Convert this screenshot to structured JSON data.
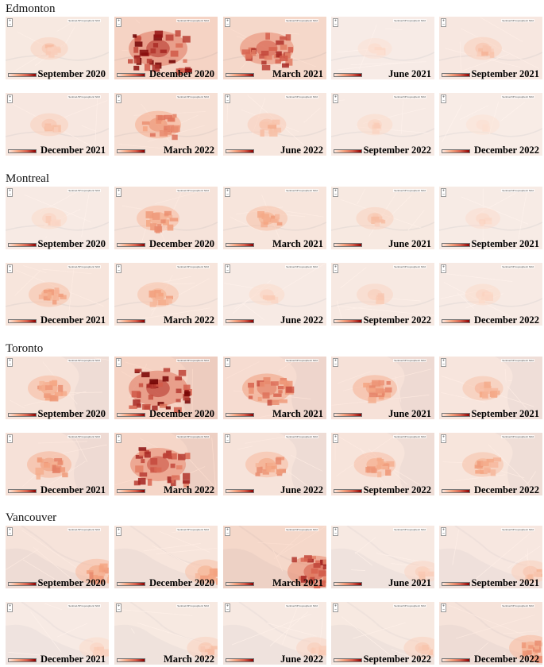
{
  "cities": [
    {
      "name": "Edmonton",
      "theme": "land",
      "caption": "Sentinel-5P tropospheric NO2",
      "intensity": [
        0.18,
        0.85,
        0.7,
        0.08,
        0.2,
        0.2,
        0.45,
        0.22,
        0.12,
        0.06
      ],
      "labels": [
        "September 2020",
        "December 2020",
        "March 2021",
        "June 2021",
        "September 2021",
        "December 2021",
        "March 2022",
        "June 2022",
        "September 2022",
        "December 2022"
      ]
    },
    {
      "name": "Montreal",
      "theme": "land",
      "caption": "Sentinel-5P tropospheric NO2",
      "intensity": [
        0.12,
        0.35,
        0.3,
        0.18,
        0.1,
        0.3,
        0.3,
        0.12,
        0.15,
        0.12
      ],
      "labels": [
        "September 2020",
        "December 2020",
        "March 2021",
        "June 2021",
        "September 2021",
        "December 2021",
        "March 2022",
        "June 2022",
        "September 2022",
        "December 2022"
      ]
    },
    {
      "name": "Toronto",
      "theme": "lake",
      "caption": "Sentinel-5P tropospheric NO2",
      "intensity": [
        0.35,
        0.85,
        0.55,
        0.4,
        0.28,
        0.4,
        0.75,
        0.35,
        0.32,
        0.3
      ],
      "labels": [
        "September 2020",
        "December 2020",
        "March 2021",
        "June 2021",
        "September 2021",
        "December 2021",
        "March 2022",
        "June 2022",
        "September 2022",
        "December 2022"
      ]
    },
    {
      "name": "Vancouver",
      "theme": "coast",
      "caption": "Sentinel-5P tropospheric NO2",
      "intensity": [
        0.35,
        0.3,
        0.7,
        0.15,
        0.2,
        0.12,
        0.18,
        0.15,
        0.18,
        0.35
      ],
      "labels": [
        "September 2020",
        "December 2020",
        "March 2021",
        "June 2021",
        "September 2021",
        "December 2021",
        "March 2022",
        "June 2022",
        "September 2022",
        "December 2022"
      ]
    }
  ],
  "colors": {
    "low": "#fde6dc",
    "mid": "#f4a582",
    "high": "#d6604d",
    "max": "#7f0000",
    "land": "#f2f2f2",
    "water": "#dfe3e6",
    "road": "#ffffff"
  },
  "icons": {
    "zoom": "zoom-control-icon",
    "legend": "color-scale-legend"
  }
}
